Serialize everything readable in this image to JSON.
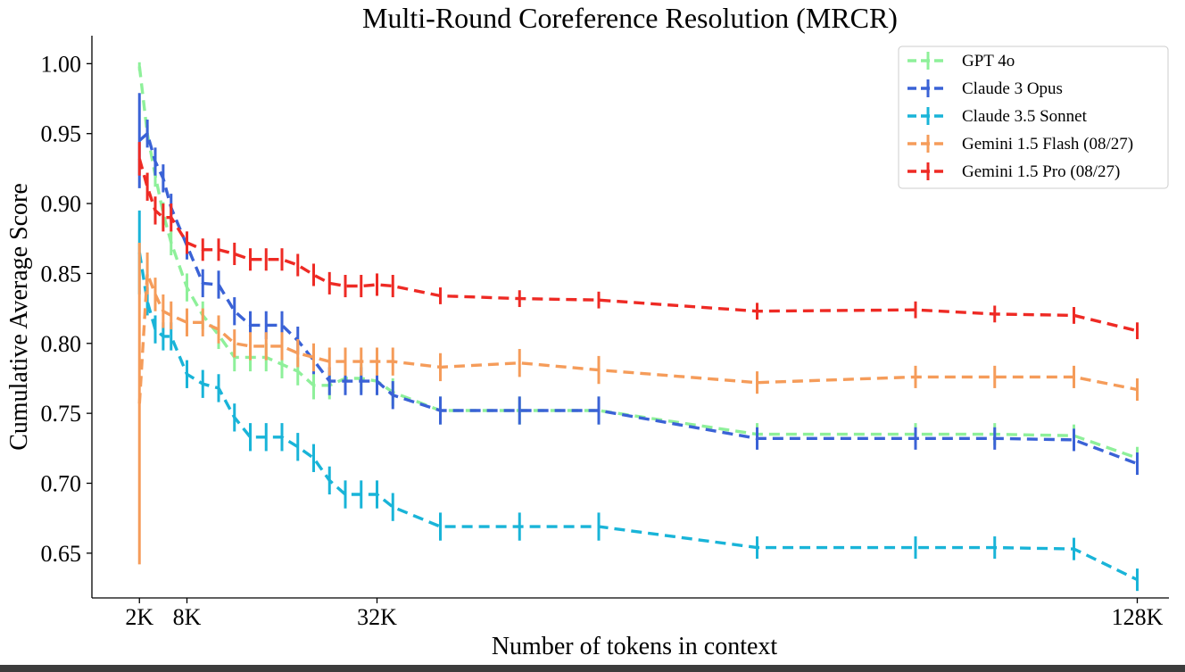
{
  "chart_data": {
    "type": "line",
    "title": "Multi-Round Coreference Resolution (MRCR)",
    "xlabel": "Number of tokens in context",
    "ylabel": "Cumulative Average Score",
    "xlim": [
      -4,
      132
    ],
    "ylim": [
      0.618,
      1.02
    ],
    "x_ticks": [
      2,
      8,
      32,
      128
    ],
    "x_tick_labels": [
      "2K",
      "8K",
      "32K",
      "128K"
    ],
    "y_ticks": [
      0.65,
      0.7,
      0.75,
      0.8,
      0.85,
      0.9,
      0.95,
      1.0
    ],
    "y_tick_labels": [
      "0.65",
      "0.70",
      "0.75",
      "0.80",
      "0.85",
      "0.90",
      "0.95",
      "1.00"
    ],
    "grid": false,
    "legend_position": "top-right",
    "series": [
      {
        "name": "GPT 4o",
        "color": "#8ef09a",
        "x": [
          2,
          3,
          4,
          5,
          6,
          8,
          10,
          12,
          14,
          16,
          18,
          20,
          22,
          24,
          26,
          28,
          30,
          32,
          34,
          40,
          50,
          60,
          80,
          100,
          110,
          120,
          128
        ],
        "y": [
          0.998,
          0.95,
          0.92,
          0.893,
          0.872,
          0.84,
          0.82,
          0.806,
          0.79,
          0.79,
          0.79,
          0.785,
          0.78,
          0.77,
          0.77,
          0.775,
          0.775,
          0.773,
          0.765,
          0.752,
          0.752,
          0.752,
          0.735,
          0.735,
          0.735,
          0.734,
          0.718
        ],
        "err": [
          0.003,
          0.006,
          0.008,
          0.008,
          0.009,
          0.01,
          0.01,
          0.01,
          0.01,
          0.01,
          0.01,
          0.01,
          0.01,
          0.01,
          0.01,
          0.01,
          0.01,
          0.01,
          0.01,
          0.01,
          0.01,
          0.01,
          0.008,
          0.008,
          0.008,
          0.008,
          0.008
        ]
      },
      {
        "name": "Claude 3 Opus",
        "color": "#3a62d6",
        "x": [
          2,
          3,
          4,
          5,
          6,
          8,
          10,
          12,
          14,
          16,
          18,
          20,
          22,
          24,
          26,
          28,
          30,
          32,
          34,
          40,
          50,
          60,
          80,
          100,
          110,
          120,
          128
        ],
        "y": [
          0.945,
          0.95,
          0.93,
          0.918,
          0.897,
          0.87,
          0.843,
          0.842,
          0.823,
          0.813,
          0.813,
          0.813,
          0.802,
          0.788,
          0.773,
          0.773,
          0.773,
          0.773,
          0.763,
          0.752,
          0.752,
          0.752,
          0.732,
          0.732,
          0.732,
          0.731,
          0.714
        ],
        "err": [
          0.034,
          0.01,
          0.01,
          0.01,
          0.01,
          0.01,
          0.01,
          0.01,
          0.01,
          0.01,
          0.01,
          0.01,
          0.01,
          0.01,
          0.01,
          0.01,
          0.01,
          0.01,
          0.01,
          0.01,
          0.01,
          0.01,
          0.008,
          0.008,
          0.008,
          0.008,
          0.008
        ]
      },
      {
        "name": "Claude 3.5 Sonnet",
        "color": "#19b4d8",
        "x": [
          2,
          3,
          4,
          5,
          6,
          8,
          10,
          12,
          14,
          16,
          18,
          20,
          22,
          24,
          26,
          28,
          30,
          32,
          34,
          40,
          50,
          60,
          80,
          100,
          110,
          120,
          128
        ],
        "y": [
          0.865,
          0.83,
          0.81,
          0.805,
          0.805,
          0.778,
          0.771,
          0.768,
          0.747,
          0.733,
          0.733,
          0.733,
          0.726,
          0.718,
          0.702,
          0.692,
          0.692,
          0.692,
          0.683,
          0.669,
          0.669,
          0.669,
          0.654,
          0.654,
          0.654,
          0.653,
          0.631
        ],
        "err": [
          0.03,
          0.01,
          0.01,
          0.01,
          0.01,
          0.01,
          0.01,
          0.01,
          0.01,
          0.01,
          0.01,
          0.01,
          0.01,
          0.01,
          0.01,
          0.01,
          0.01,
          0.01,
          0.01,
          0.01,
          0.01,
          0.01,
          0.008,
          0.008,
          0.008,
          0.008,
          0.008
        ]
      },
      {
        "name": "Gemini 1.5 Flash (08/27)",
        "color": "#f59c5a",
        "x": [
          2,
          3,
          4,
          5,
          6,
          8,
          10,
          12,
          14,
          16,
          18,
          20,
          22,
          24,
          26,
          28,
          30,
          32,
          34,
          40,
          50,
          60,
          80,
          100,
          110,
          120,
          128
        ],
        "y": [
          0.757,
          0.85,
          0.835,
          0.823,
          0.82,
          0.815,
          0.815,
          0.81,
          0.8,
          0.798,
          0.798,
          0.798,
          0.793,
          0.79,
          0.787,
          0.787,
          0.787,
          0.787,
          0.787,
          0.783,
          0.786,
          0.781,
          0.772,
          0.776,
          0.776,
          0.776,
          0.767
        ],
        "err": [
          0.115,
          0.015,
          0.012,
          0.012,
          0.01,
          0.01,
          0.01,
          0.01,
          0.01,
          0.01,
          0.01,
          0.01,
          0.01,
          0.01,
          0.01,
          0.01,
          0.01,
          0.01,
          0.01,
          0.01,
          0.01,
          0.01,
          0.008,
          0.008,
          0.008,
          0.008,
          0.008
        ]
      },
      {
        "name": "Gemini 1.5 Pro (08/27)",
        "color": "#ee2a24",
        "x": [
          2,
          3,
          4,
          5,
          6,
          8,
          10,
          12,
          14,
          16,
          18,
          20,
          22,
          24,
          26,
          28,
          30,
          32,
          34,
          40,
          50,
          60,
          80,
          100,
          110,
          120,
          128
        ],
        "y": [
          0.932,
          0.912,
          0.895,
          0.89,
          0.89,
          0.872,
          0.867,
          0.867,
          0.864,
          0.86,
          0.86,
          0.86,
          0.856,
          0.849,
          0.843,
          0.841,
          0.841,
          0.842,
          0.841,
          0.834,
          0.832,
          0.831,
          0.823,
          0.824,
          0.821,
          0.82,
          0.809
        ],
        "err": [
          0.012,
          0.01,
          0.01,
          0.01,
          0.01,
          0.008,
          0.008,
          0.008,
          0.008,
          0.008,
          0.008,
          0.008,
          0.008,
          0.008,
          0.008,
          0.008,
          0.008,
          0.008,
          0.008,
          0.006,
          0.006,
          0.006,
          0.006,
          0.006,
          0.006,
          0.006,
          0.006
        ]
      }
    ]
  }
}
